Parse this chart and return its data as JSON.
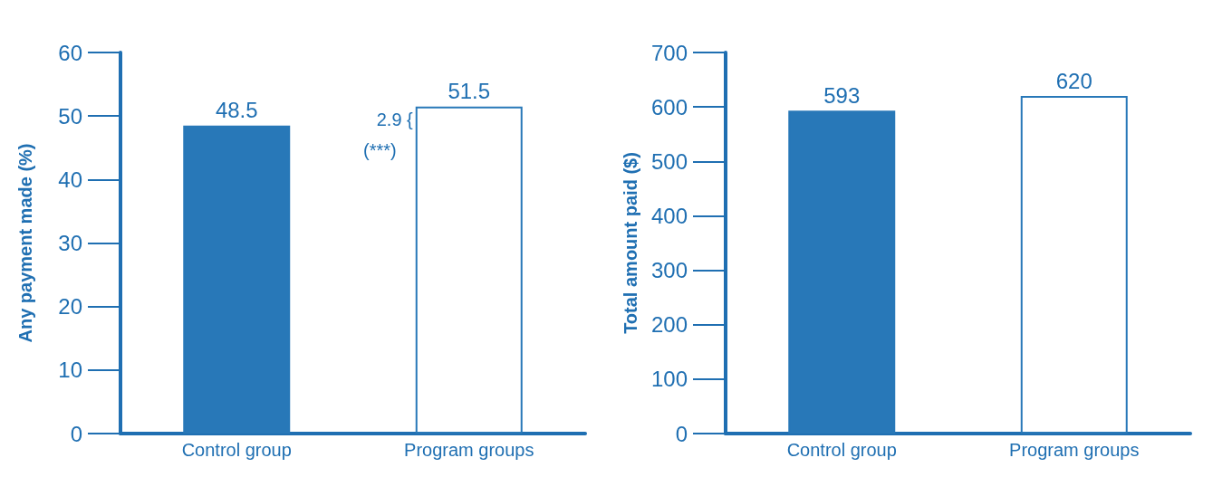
{
  "chart_data": [
    {
      "type": "bar",
      "ylabel": "Any payment made (%)",
      "categories": [
        "Control group",
        "Program groups"
      ],
      "values": [
        48.5,
        51.5
      ],
      "colors": [
        "#2878b8",
        "#ffffff"
      ],
      "ylim": [
        0,
        60
      ],
      "yticks": [
        0,
        10,
        20,
        30,
        40,
        50,
        60
      ],
      "grid": false,
      "data_labels": true,
      "annotations": [
        "2.9 {",
        "(***)"
      ]
    },
    {
      "type": "bar",
      "ylabel": "Total amount paid ($)",
      "categories": [
        "Control group",
        "Program groups"
      ],
      "values": [
        593,
        620
      ],
      "colors": [
        "#2878b8",
        "#ffffff"
      ],
      "ylim": [
        0,
        700
      ],
      "yticks": [
        0,
        100,
        200,
        300,
        400,
        500,
        600,
        700
      ],
      "grid": false,
      "data_labels": true
    }
  ]
}
